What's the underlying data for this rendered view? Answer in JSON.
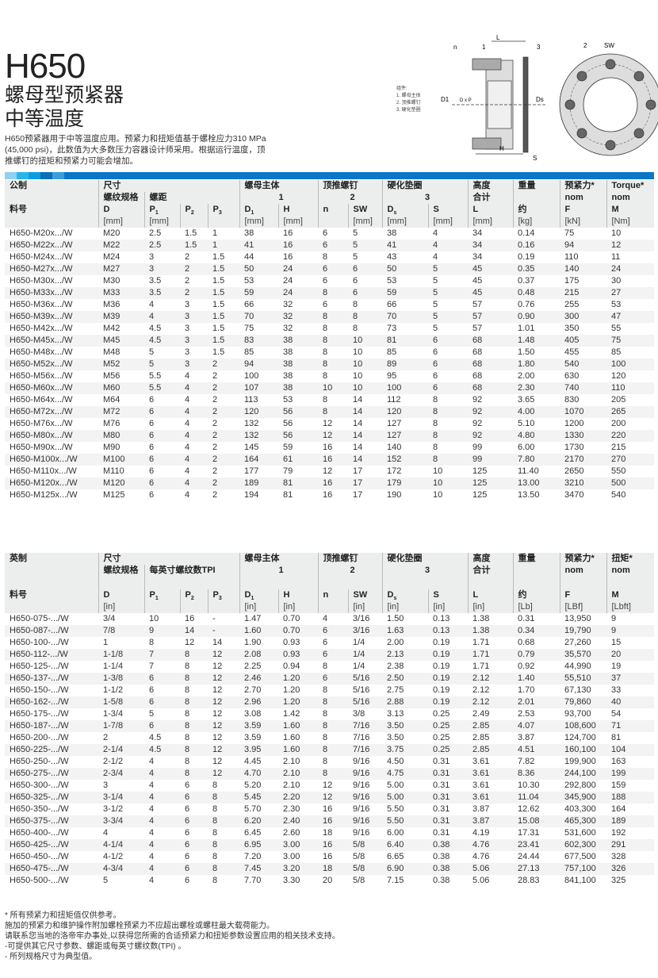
{
  "header": {
    "title": "H650",
    "subtitle1": "螺母型预紧器",
    "subtitle2": "中等温度",
    "description": "H650预紧器用于中等温度应用。预紧力和扭矩值基于螺栓应力310 MPa (45,000 psi)，此数值为大多数压力容器设计师采用。根据运行温度，顶推螺钉的扭矩和预紧力可能会增加。"
  },
  "diagram": {
    "legend_title": "组件:",
    "legend_items": [
      "1. 螺母主体",
      "2. 顶推螺钉",
      "3. 硬化垫圈"
    ],
    "labels": {
      "L": "L",
      "n": "n",
      "one": "1",
      "three": "3",
      "two": "2",
      "SW": "SW",
      "D1": "D1",
      "DxP": "D x P",
      "Ds": "Ds",
      "H": "H",
      "S": "S"
    }
  },
  "accent": "#0a76c6",
  "metric": {
    "h": {
      "part": "公制",
      "size": "尺寸",
      "thread": "螺纹规格",
      "pitch": "螺距",
      "nutbody": "螺母主体",
      "one": "1",
      "jack": "顶推螺钉",
      "two": "2",
      "washer": "硬化垫圈",
      "three": "3",
      "height": "高度",
      "total": "合计",
      "weight": "重量",
      "preload": "预紧力*",
      "torque": "Torque*",
      "nom1": "nom",
      "nom2": "nom",
      "partno": "料号",
      "approx": "约",
      "c": [
        "D",
        "P1",
        "P2",
        "P3",
        "D1",
        "H",
        "n",
        "SW",
        "Ds",
        "S",
        "L",
        "约",
        "F",
        "M"
      ],
      "units": [
        "[mm]",
        "[mm]",
        "",
        "",
        "[mm]",
        "[mm]",
        "",
        "[mm]",
        "[mm]",
        "[mm]",
        "[mm]",
        "[kg]",
        "[kN]",
        "[Nm]"
      ]
    },
    "rows": [
      [
        "H650-M20x.../W",
        "M20",
        "2.5",
        "1.5",
        "1",
        "38",
        "16",
        "6",
        "5",
        "38",
        "4",
        "34",
        "0.14",
        "75",
        "10"
      ],
      [
        "H650-M22x.../W",
        "M22",
        "2.5",
        "1.5",
        "1",
        "41",
        "16",
        "6",
        "5",
        "41",
        "4",
        "34",
        "0.16",
        "94",
        "12"
      ],
      [
        "H650-M24x.../W",
        "M24",
        "3",
        "2",
        "1.5",
        "44",
        "16",
        "8",
        "5",
        "43",
        "4",
        "34",
        "0.19",
        "110",
        "11"
      ],
      [
        "H650-M27x.../W",
        "M27",
        "3",
        "2",
        "1.5",
        "50",
        "24",
        "6",
        "6",
        "50",
        "5",
        "45",
        "0.35",
        "140",
        "24"
      ],
      [
        "H650-M30x.../W",
        "M30",
        "3.5",
        "2",
        "1.5",
        "53",
        "24",
        "6",
        "6",
        "53",
        "5",
        "45",
        "0.37",
        "175",
        "30"
      ],
      [
        "H650-M33x.../W",
        "M33",
        "3.5",
        "2",
        "1.5",
        "59",
        "24",
        "8",
        "6",
        "59",
        "5",
        "45",
        "0.48",
        "215",
        "27"
      ],
      [
        "H650-M36x.../W",
        "M36",
        "4",
        "3",
        "1.5",
        "66",
        "32",
        "6",
        "8",
        "66",
        "5",
        "57",
        "0.76",
        "255",
        "53"
      ],
      [
        "H650-M39x.../W",
        "M39",
        "4",
        "3",
        "1.5",
        "70",
        "32",
        "8",
        "8",
        "70",
        "5",
        "57",
        "0.90",
        "300",
        "47"
      ],
      [
        "H650-M42x.../W",
        "M42",
        "4.5",
        "3",
        "1.5",
        "75",
        "32",
        "8",
        "8",
        "73",
        "5",
        "57",
        "1.01",
        "350",
        "55"
      ],
      [
        "H650-M45x.../W",
        "M45",
        "4.5",
        "3",
        "1.5",
        "83",
        "38",
        "8",
        "10",
        "81",
        "6",
        "68",
        "1.48",
        "405",
        "75"
      ],
      [
        "H650-M48x.../W",
        "M48",
        "5",
        "3",
        "1.5",
        "85",
        "38",
        "8",
        "10",
        "85",
        "6",
        "68",
        "1.50",
        "455",
        "85"
      ],
      [
        "H650-M52x.../W",
        "M52",
        "5",
        "3",
        "2",
        "94",
        "38",
        "8",
        "10",
        "89",
        "6",
        "68",
        "1.80",
        "540",
        "100"
      ],
      [
        "H650-M56x.../W",
        "M56",
        "5.5",
        "4",
        "2",
        "100",
        "38",
        "8",
        "10",
        "95",
        "6",
        "68",
        "2.00",
        "630",
        "120"
      ],
      [
        "H650-M60x.../W",
        "M60",
        "5.5",
        "4",
        "2",
        "107",
        "38",
        "10",
        "10",
        "100",
        "6",
        "68",
        "2.30",
        "740",
        "110"
      ],
      [
        "H650-M64x.../W",
        "M64",
        "6",
        "4",
        "2",
        "113",
        "53",
        "8",
        "14",
        "112",
        "8",
        "92",
        "3.65",
        "830",
        "205"
      ],
      [
        "H650-M72x.../W",
        "M72",
        "6",
        "4",
        "2",
        "120",
        "56",
        "8",
        "14",
        "120",
        "8",
        "92",
        "4.00",
        "1070",
        "265"
      ],
      [
        "H650-M76x.../W",
        "M76",
        "6",
        "4",
        "2",
        "132",
        "56",
        "12",
        "14",
        "127",
        "8",
        "92",
        "5.10",
        "1200",
        "200"
      ],
      [
        "H650-M80x.../W",
        "M80",
        "6",
        "4",
        "2",
        "132",
        "56",
        "12",
        "14",
        "127",
        "8",
        "92",
        "4.80",
        "1330",
        "220"
      ],
      [
        "H650-M90x.../W",
        "M90",
        "6",
        "4",
        "2",
        "145",
        "59",
        "16",
        "14",
        "140",
        "8",
        "99",
        "6.00",
        "1730",
        "215"
      ],
      [
        "H650-M100x.../W",
        "M100",
        "6",
        "4",
        "2",
        "164",
        "61",
        "16",
        "14",
        "152",
        "8",
        "99",
        "7.80",
        "2170",
        "270"
      ],
      [
        "H650-M110x.../W",
        "M110",
        "6",
        "4",
        "2",
        "177",
        "79",
        "12",
        "17",
        "172",
        "10",
        "125",
        "11.40",
        "2650",
        "550"
      ],
      [
        "H650-M120x.../W",
        "M120",
        "6",
        "4",
        "2",
        "189",
        "81",
        "16",
        "17",
        "179",
        "10",
        "125",
        "13.00",
        "3210",
        "500"
      ],
      [
        "H650-M125x.../W",
        "M125",
        "6",
        "4",
        "2",
        "194",
        "81",
        "16",
        "17",
        "190",
        "10",
        "125",
        "13.50",
        "3470",
        "540"
      ]
    ]
  },
  "imperial": {
    "h": {
      "part": "英制",
      "size": "尺寸",
      "thread": "螺纹规格",
      "pitch": "每英寸螺纹数TPI",
      "nutbody": "螺母主体",
      "one": "1",
      "jack": "顶推螺钉",
      "two": "2",
      "washer": "硬化垫圈",
      "three": "3",
      "height": "高度",
      "total": "合计",
      "weight": "重量",
      "preload": "预紧力*",
      "torque": "扭矩*",
      "nom1": "nom",
      "nom2": "nom",
      "partno": "料号",
      "approx": "约",
      "c": [
        "D",
        "P1",
        "P2",
        "P3",
        "D1",
        "H",
        "n",
        "SW",
        "Ds",
        "S",
        "L",
        "约",
        "F",
        "M"
      ],
      "units": [
        "[in]",
        "",
        "",
        "",
        "[in]",
        "[in]",
        "",
        "[in]",
        "[in]",
        "[in]",
        "[in]",
        "[Lb]",
        "[LBf]",
        "[Lbft]"
      ]
    },
    "rows": [
      [
        "H650-075-.../W",
        "3/4",
        "10",
        "16",
        "-",
        "1.47",
        "0.70",
        "4",
        "3/16",
        "1.50",
        "0.13",
        "1.38",
        "0.31",
        "13,950",
        "9"
      ],
      [
        "H650-087-.../W",
        "7/8",
        "9",
        "14",
        "-",
        "1.60",
        "0.70",
        "6",
        "3/16",
        "1.63",
        "0.13",
        "1.38",
        "0.34",
        "19,790",
        "9"
      ],
      [
        "H650-100-.../W",
        "1",
        "8",
        "12",
        "14",
        "1.90",
        "0.93",
        "6",
        "1/4",
        "2.00",
        "0.19",
        "1.71",
        "0.68",
        "27,260",
        "15"
      ],
      [
        "H650-112-.../W",
        "1-1/8",
        "7",
        "8",
        "12",
        "2.08",
        "0.93",
        "6",
        "1/4",
        "2.13",
        "0.19",
        "1.71",
        "0.79",
        "35,570",
        "20"
      ],
      [
        "H650-125-.../W",
        "1-1/4",
        "7",
        "8",
        "12",
        "2.25",
        "0.94",
        "8",
        "1/4",
        "2.38",
        "0.19",
        "1.71",
        "0.92",
        "44,990",
        "19"
      ],
      [
        "H650-137-.../W",
        "1-3/8",
        "6",
        "8",
        "12",
        "2.46",
        "1.20",
        "6",
        "5/16",
        "2.50",
        "0.19",
        "2.12",
        "1.40",
        "55,510",
        "37"
      ],
      [
        "H650-150-.../W",
        "1-1/2",
        "6",
        "8",
        "12",
        "2.70",
        "1.20",
        "8",
        "5/16",
        "2.75",
        "0.19",
        "2.12",
        "1.70",
        "67,130",
        "33"
      ],
      [
        "H650-162-.../W",
        "1-5/8",
        "6",
        "8",
        "12",
        "2.96",
        "1.20",
        "8",
        "5/16",
        "2.88",
        "0.19",
        "2.12",
        "2.01",
        "79,860",
        "40"
      ],
      [
        "H650-175-.../W",
        "1-3/4",
        "5",
        "8",
        "12",
        "3.08",
        "1.42",
        "8",
        "3/8",
        "3.13",
        "0.25",
        "2.49",
        "2.53",
        "93,700",
        "54"
      ],
      [
        "H650-187-.../W",
        "1-7/8",
        "6",
        "8",
        "12",
        "3.59",
        "1.60",
        "8",
        "7/16",
        "3.50",
        "0.25",
        "2.85",
        "4.07",
        "108,600",
        "71"
      ],
      [
        "H650-200-.../W",
        "2",
        "4.5",
        "8",
        "12",
        "3.59",
        "1.60",
        "8",
        "7/16",
        "3.50",
        "0.25",
        "2.85",
        "3.87",
        "124,700",
        "81"
      ],
      [
        "H650-225-.../W",
        "2-1/4",
        "4.5",
        "8",
        "12",
        "3.95",
        "1.60",
        "8",
        "7/16",
        "3.75",
        "0.25",
        "2.85",
        "4.51",
        "160,100",
        "104"
      ],
      [
        "H650-250-.../W",
        "2-1/2",
        "4",
        "8",
        "12",
        "4.45",
        "2.10",
        "8",
        "9/16",
        "4.50",
        "0.31",
        "3.61",
        "7.82",
        "199,900",
        "163"
      ],
      [
        "H650-275-.../W",
        "2-3/4",
        "4",
        "8",
        "12",
        "4.70",
        "2.10",
        "8",
        "9/16",
        "4.75",
        "0.31",
        "3.61",
        "8.36",
        "244,100",
        "199"
      ],
      [
        "H650-300-.../W",
        "3",
        "4",
        "6",
        "8",
        "5.20",
        "2.10",
        "12",
        "9/16",
        "5.00",
        "0.31",
        "3.61",
        "10.30",
        "292,800",
        "159"
      ],
      [
        "H650-325-.../W",
        "3-1/4",
        "4",
        "6",
        "8",
        "5.45",
        "2.20",
        "12",
        "9/16",
        "5.00",
        "0.31",
        "3.61",
        "11.04",
        "345,900",
        "188"
      ],
      [
        "H650-350-.../W",
        "3-1/2",
        "4",
        "6",
        "8",
        "5.70",
        "2.30",
        "16",
        "9/16",
        "5.50",
        "0.31",
        "3.87",
        "12.62",
        "403,300",
        "164"
      ],
      [
        "H650-375-.../W",
        "3-3/4",
        "4",
        "6",
        "8",
        "6.20",
        "2.40",
        "16",
        "9/16",
        "5.50",
        "0.31",
        "3.87",
        "15.08",
        "465,300",
        "189"
      ],
      [
        "H650-400-.../W",
        "4",
        "4",
        "6",
        "8",
        "6.45",
        "2.60",
        "18",
        "9/16",
        "6.00",
        "0.31",
        "4.19",
        "17.31",
        "531,600",
        "192"
      ],
      [
        "H650-425-.../W",
        "4-1/4",
        "4",
        "6",
        "8",
        "6.95",
        "3.00",
        "16",
        "5/8",
        "6.40",
        "0.38",
        "4.76",
        "23.41",
        "602,300",
        "291"
      ],
      [
        "H650-450-.../W",
        "4-1/2",
        "4",
        "6",
        "8",
        "7.20",
        "3.00",
        "16",
        "5/8",
        "6.65",
        "0.38",
        "4.76",
        "24.44",
        "677,500",
        "328"
      ],
      [
        "H650-475-.../W",
        "4-3/4",
        "4",
        "6",
        "8",
        "7.45",
        "3.20",
        "18",
        "5/8",
        "6.90",
        "0.38",
        "5.06",
        "27.13",
        "757,100",
        "326"
      ],
      [
        "H650-500-.../W",
        "5",
        "4",
        "6",
        "8",
        "7.70",
        "3.30",
        "20",
        "5/8",
        "7.15",
        "0.38",
        "5.06",
        "28.83",
        "841,100",
        "325"
      ]
    ]
  },
  "notes": [
    "* 所有预紧力和扭矩值仅供参考。",
    " 施加的预紧力和维护操作附加螺栓预紧力不应超出螺栓或螺柱最大载荷能力。",
    " 请联系您当地的洛帝牢办事处,以获得您所需的合适预紧力和扭矩参数设置应用的相关技术支持。",
    "-可提供其它尺寸参数、螺距或每英寸螺纹数(TPI) 。",
    "- 所列规格尺寸为典型值。"
  ]
}
